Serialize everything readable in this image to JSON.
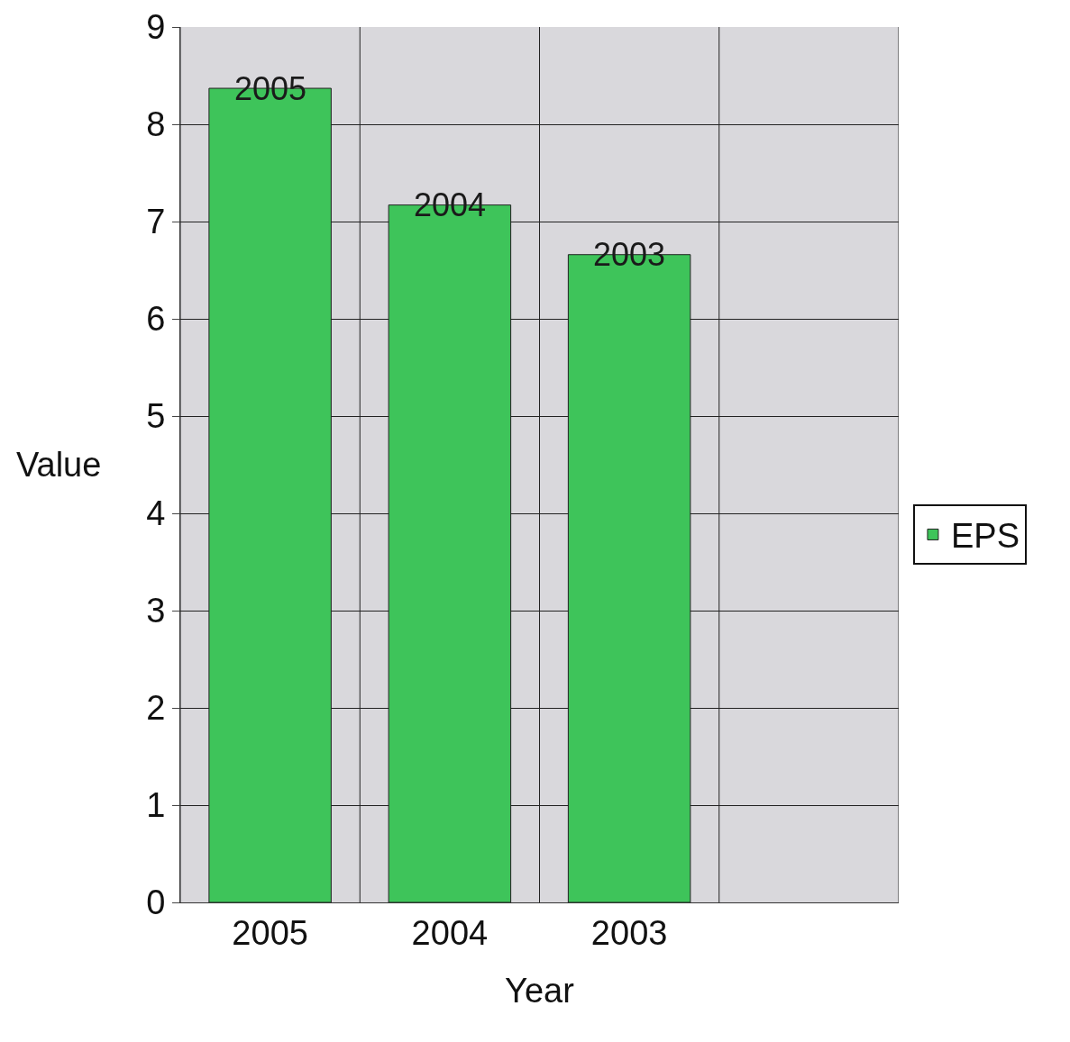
{
  "chart_data": {
    "type": "bar",
    "xlabel": "Year",
    "ylabel": "Value",
    "categories": [
      "2005",
      "2004",
      "2003",
      null
    ],
    "series": [
      {
        "name": "EPS",
        "color": "#3ec45a",
        "values": [
          8.37,
          7.17,
          6.66,
          null
        ]
      }
    ],
    "annotations": [
      {
        "text": "2005",
        "x": "2005",
        "y": 8.37
      },
      {
        "text": "2004",
        "x": "2004",
        "y": 7.17
      },
      {
        "text": "2003",
        "x": "2003",
        "y": 6.66
      }
    ],
    "ylim": [
      0,
      9
    ],
    "yticks": [
      0,
      1,
      2,
      3,
      4,
      5,
      6,
      7,
      8,
      9
    ],
    "grid": true,
    "legend": "right"
  }
}
